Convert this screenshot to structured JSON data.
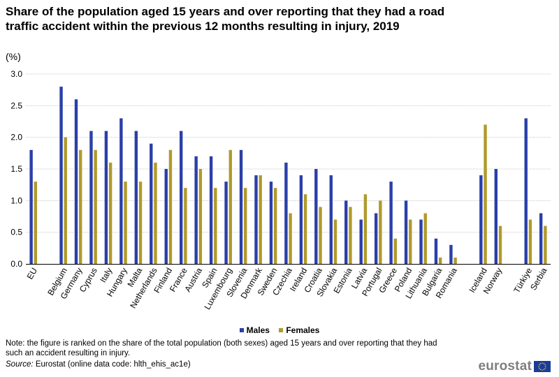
{
  "header": {
    "title": "Share of the population aged 15 years and over reporting that they had a road traffic accident within the previous 12 months resulting in injury, 2019",
    "unit": "(%)"
  },
  "chart_data": {
    "type": "bar",
    "title": "Share of the population aged 15 years and over reporting that they had a road traffic accident within the previous 12 months resulting in injury, 2019",
    "ylabel": "(%)",
    "xlabel": "",
    "ylim": [
      0,
      3.0
    ],
    "yticks": [
      "0.0",
      "0.5",
      "1.0",
      "1.5",
      "2.0",
      "2.5",
      "3.0"
    ],
    "ytick_values": [
      0,
      0.5,
      1.0,
      1.5,
      2.0,
      2.5,
      3.0
    ],
    "grid": true,
    "legend_position": "bottom-center",
    "categories": [
      "EU",
      "Belgium",
      "Germany",
      "Cyprus",
      "Italy",
      "Hungary",
      "Malta",
      "Netherlands",
      "Finland",
      "France",
      "Austria",
      "Spain",
      "Luxembourg",
      "Slovenia",
      "Denmark",
      "Sweden",
      "Czechia",
      "Ireland",
      "Croatia",
      "Slovakia",
      "Estonia",
      "Latvia",
      "Portugal",
      "Greece",
      "Poland",
      "Lithuania",
      "Bulgaria",
      "Romania",
      "Iceland",
      "Norway",
      "Türkiye",
      "Serbia"
    ],
    "groups": [
      0,
      1,
      1,
      1,
      1,
      1,
      1,
      1,
      1,
      1,
      1,
      1,
      1,
      1,
      1,
      1,
      1,
      1,
      1,
      1,
      1,
      1,
      1,
      1,
      1,
      1,
      1,
      1,
      2,
      2,
      3,
      3
    ],
    "series": [
      {
        "name": "Males",
        "color": "#2a3fa8",
        "values": [
          1.8,
          2.8,
          2.6,
          2.1,
          2.1,
          2.3,
          2.1,
          1.9,
          1.5,
          2.1,
          1.7,
          1.7,
          1.3,
          1.8,
          1.4,
          1.3,
          1.6,
          1.4,
          1.5,
          1.4,
          1.0,
          0.7,
          0.8,
          1.3,
          1.0,
          0.7,
          0.4,
          0.3,
          1.4,
          1.5,
          2.3,
          0.8
        ]
      },
      {
        "name": "Females",
        "color": "#b09a2a",
        "values": [
          1.3,
          2.0,
          1.8,
          1.8,
          1.6,
          1.3,
          1.3,
          1.6,
          1.8,
          1.2,
          1.5,
          1.2,
          1.8,
          1.2,
          1.4,
          1.2,
          0.8,
          1.1,
          0.9,
          0.7,
          0.9,
          1.1,
          1.0,
          0.4,
          0.7,
          0.8,
          0.1,
          0.1,
          2.2,
          0.6,
          0.7,
          0.6
        ]
      }
    ]
  },
  "footer": {
    "note": "Note: the figure is ranked on the share of the total population (both sexes) aged 15 years and over reporting that they had such an accident resulting in injury.",
    "source_label": "Source:",
    "source_text": " Eurostat (online data code: hlth_ehis_ac1e)",
    "logo_text": "eurostat"
  }
}
